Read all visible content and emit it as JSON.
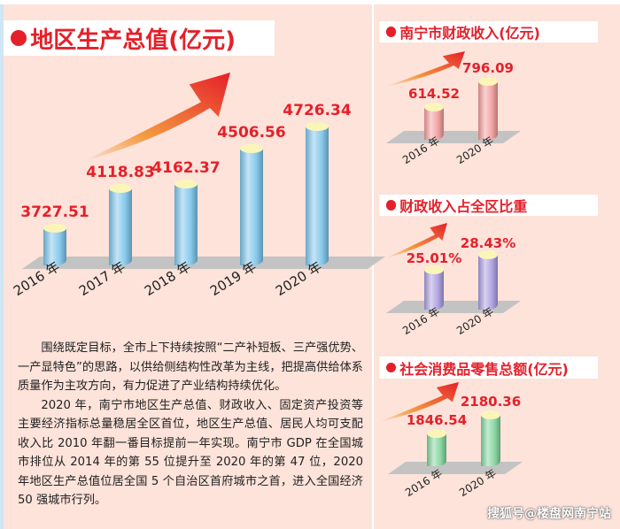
{
  "chart_data": [
    {
      "type": "bar",
      "title": "地区生产总值(亿元)",
      "categories": [
        "2016 年",
        "2017 年",
        "2018 年",
        "2019 年",
        "2020 年"
      ],
      "values": [
        3727.51,
        4118.83,
        4162.37,
        4506.56,
        4726.34
      ],
      "value_labels": [
        "3727.51",
        "4118.83",
        "4162.37",
        "4506.56",
        "4726.34"
      ],
      "color": "#7cc4ea"
    },
    {
      "type": "bar",
      "title": "南宁市财政收入(亿元)",
      "categories": [
        "2016 年",
        "2020 年"
      ],
      "values": [
        614.52,
        796.09
      ],
      "value_labels": [
        "614.52",
        "796.09"
      ],
      "color": "#f29a9a"
    },
    {
      "type": "bar",
      "title": "财政收入占全区比重",
      "categories": [
        "2016 年",
        "2020 年"
      ],
      "values": [
        25.01,
        28.43
      ],
      "value_labels": [
        "25.01%",
        "28.43%"
      ],
      "color": "#a99be0"
    },
    {
      "type": "bar",
      "title": "社会消费品零售总额(亿元)",
      "categories": [
        "2016 年",
        "2020 年"
      ],
      "values": [
        1846.54,
        2180.36
      ],
      "value_labels": [
        "1846.54",
        "2180.36"
      ],
      "color": "#7fd39a"
    }
  ],
  "body_text": [
    "围绕既定目标，全市上下持续按照“二产补短板、三产强优势、一产显特色”的思路，以供给侧结构性改革为主线，把提高供给体系质量作为主攻方向，有力促进了产业结构持续优化。",
    "2020 年，南宁市地区生产总值、财政收入、固定资产投资等主要经济指标总量稳居全区首位，地区生产总值、居民人均可支配收入比 2010 年翻一番目标提前一年实现。南宁市 GDP 在全国城市排位从 2014 年的第 55 位提升至 2020 年的第 47 位，2020 年地区生产总值位居全国 5 个自治区首府城市之首，进入全国经济 50 强城市行列。"
  ],
  "watermark": "搜狐号@楼盘网南宁站",
  "colors": {
    "accent": "#e5202a",
    "background": "#fde3da"
  }
}
